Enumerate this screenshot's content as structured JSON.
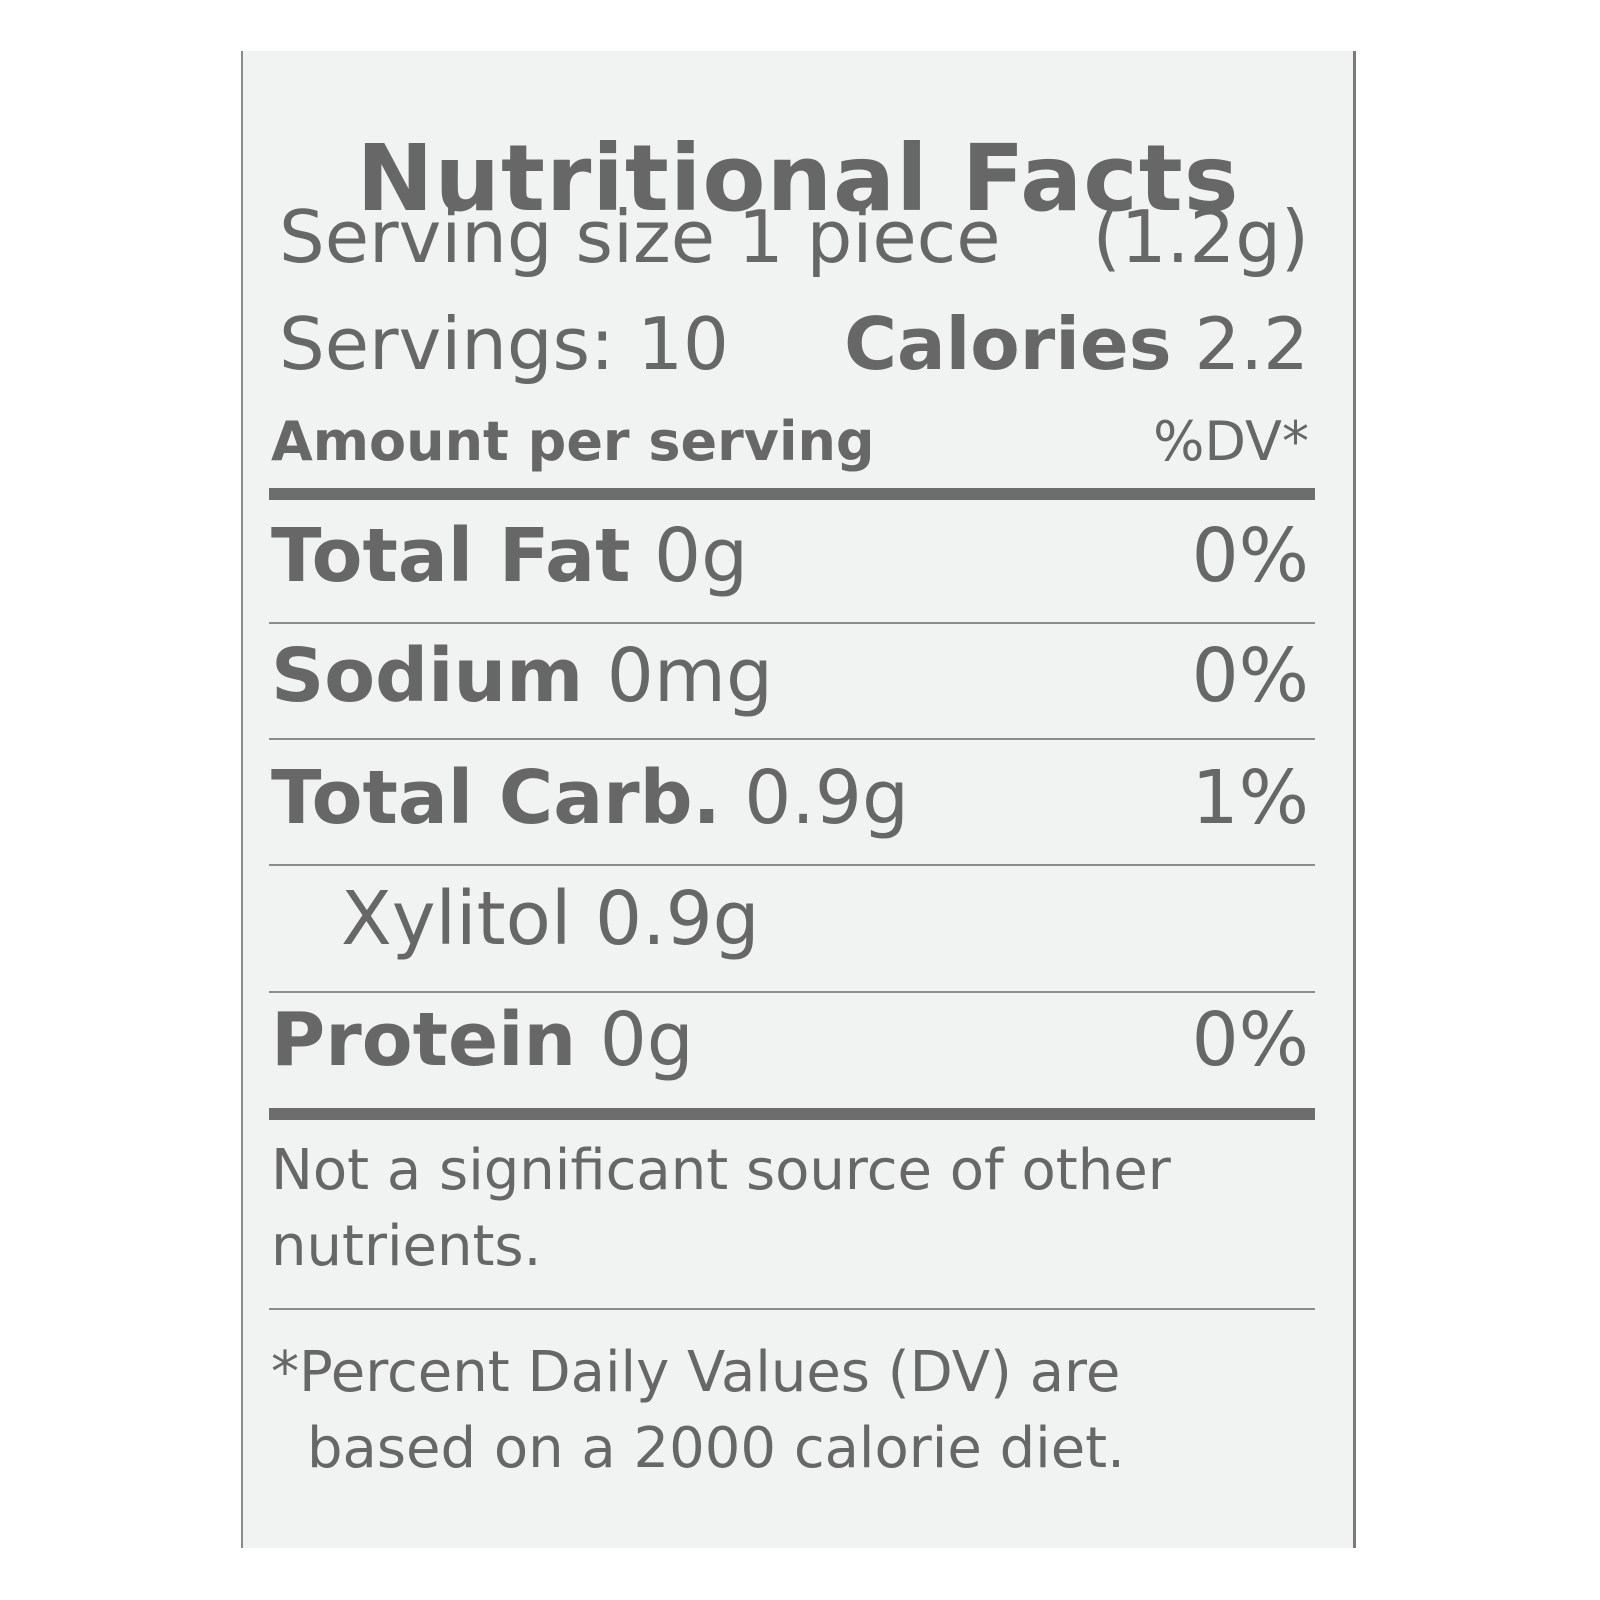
{
  "label": {
    "title": "Nutritional Facts",
    "serving_size_label": "Serving size 1 piece",
    "serving_size_weight": "(1.2g)",
    "servings": "Servings: 10",
    "calories_label": "Calories",
    "calories_value": "2.2",
    "amount_header": "Amount per serving",
    "dv_header": "%DV*",
    "nutrients": [
      {
        "name": "Total Fat",
        "amount": "0g",
        "dv": "0%"
      },
      {
        "name": "Sodium",
        "amount": "0mg",
        "dv": "0%"
      },
      {
        "name": "Total Carb.",
        "amount": "0.9g",
        "dv": "1%"
      },
      {
        "name": "Xylitol",
        "amount": "0.9g",
        "dv": ""
      },
      {
        "name": "Protein",
        "amount": "0g",
        "dv": "0%"
      }
    ],
    "note_line1": "Not a significant source of other",
    "note_line2": "nutrients.",
    "footnote_line1": "*Percent Daily Values (DV) are",
    "footnote_line2": "based on a 2000 calorie diet."
  }
}
